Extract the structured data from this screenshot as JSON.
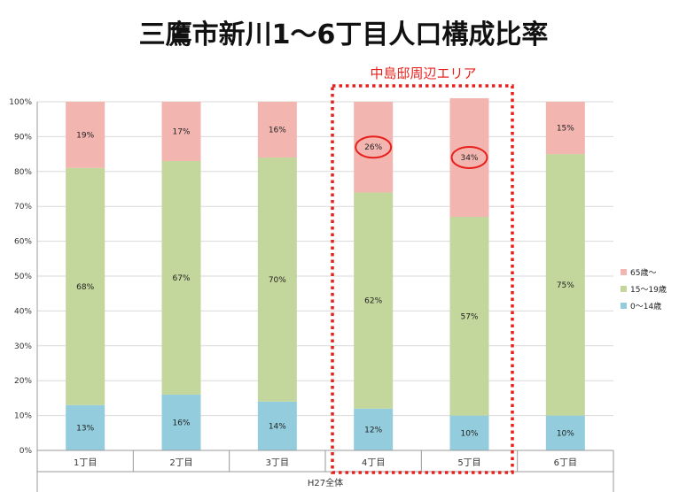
{
  "chart_data": {
    "type": "bar",
    "stacked": true,
    "title": "三鷹市新川1〜6丁目人口構成比率",
    "categories": [
      "1丁目",
      "2丁目",
      "3丁目",
      "4丁目",
      "5丁目",
      "6丁目"
    ],
    "group_label": "H27全体",
    "ylim": [
      0,
      100
    ],
    "yticks": [
      "0%",
      "10%",
      "20%",
      "30%",
      "40%",
      "50%",
      "60%",
      "70%",
      "80%",
      "90%",
      "100%"
    ],
    "series": [
      {
        "name": "0〜14歳",
        "values": [
          13,
          16,
          14,
          12,
          10,
          10
        ],
        "labels": [
          "13%",
          "16%",
          "14%",
          "12%",
          "10%",
          "10%"
        ],
        "color": "#93cddd"
      },
      {
        "name": "15〜19歳",
        "values": [
          68,
          67,
          70,
          62,
          57,
          75
        ],
        "labels": [
          "68%",
          "67%",
          "70%",
          "62%",
          "57%",
          "75%"
        ],
        "color": "#c3d69b"
      },
      {
        "name": "65歳〜",
        "values": [
          19,
          17,
          16,
          26,
          34,
          15
        ],
        "labels": [
          "19%",
          "17%",
          "16%",
          "26%",
          "34%",
          "15%"
        ],
        "color": "#f2b5b0"
      }
    ],
    "legend_order": [
      "65歳〜",
      "15〜19歳",
      "0〜14歳"
    ],
    "legend_position": "right",
    "grid": true,
    "highlight": {
      "label": "中島邸周辺エリア",
      "categories": [
        "4丁目",
        "5丁目"
      ],
      "circled": [
        "26%",
        "34%"
      ],
      "color": "#e8201c"
    }
  }
}
